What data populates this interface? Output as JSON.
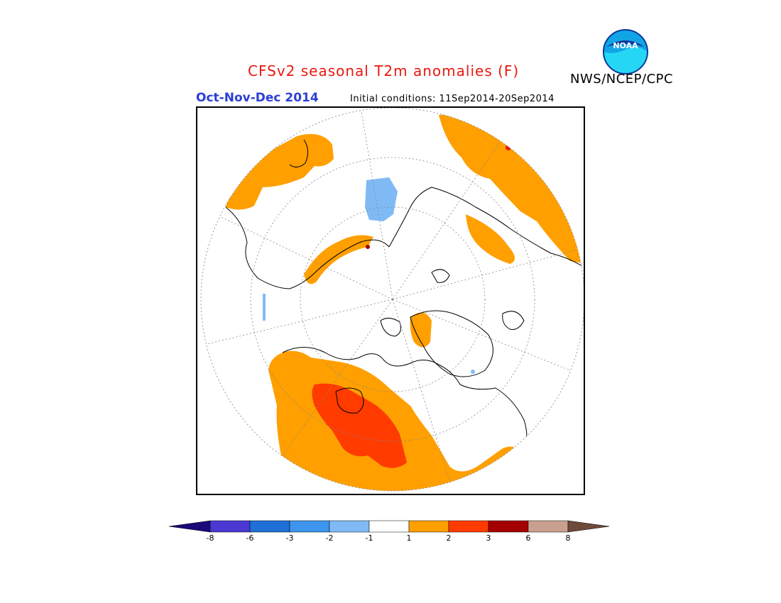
{
  "header": {
    "title": "CFSv2 seasonal T2m anomalies (F)",
    "organization": "NWS/NCEP/CPC",
    "logo_text": "NOAA",
    "season": "Oct-Nov-Dec 2014",
    "initial_conditions": "Initial conditions: 11Sep2014-20Sep2014"
  },
  "map": {
    "projection": "north-polar-stereographic",
    "variable": "2m temperature anomaly",
    "units": "F",
    "dominant_signal": "warm anomalies over North America, eastern Siberia and Scandinavia/Europe; small cold area near Svalbard"
  },
  "colorbar": {
    "tick_labels": [
      "-8",
      "-6",
      "-3",
      "-2",
      "-1",
      "1",
      "2",
      "3",
      "6",
      "8"
    ],
    "colors": {
      "below_-8": "#1a0a78",
      "-8_-6": "#4b38d2",
      "-6_-3": "#1f6fd6",
      "-3_-2": "#3d95ee",
      "-2_-1": "#7fbaf5",
      "-1_1": "#ffffff",
      "1_2": "#ff9f00",
      "2_3": "#ff3b00",
      "3_6": "#a50000",
      "6_8": "#c9a08f",
      "above_8": "#6e4a3a"
    }
  }
}
